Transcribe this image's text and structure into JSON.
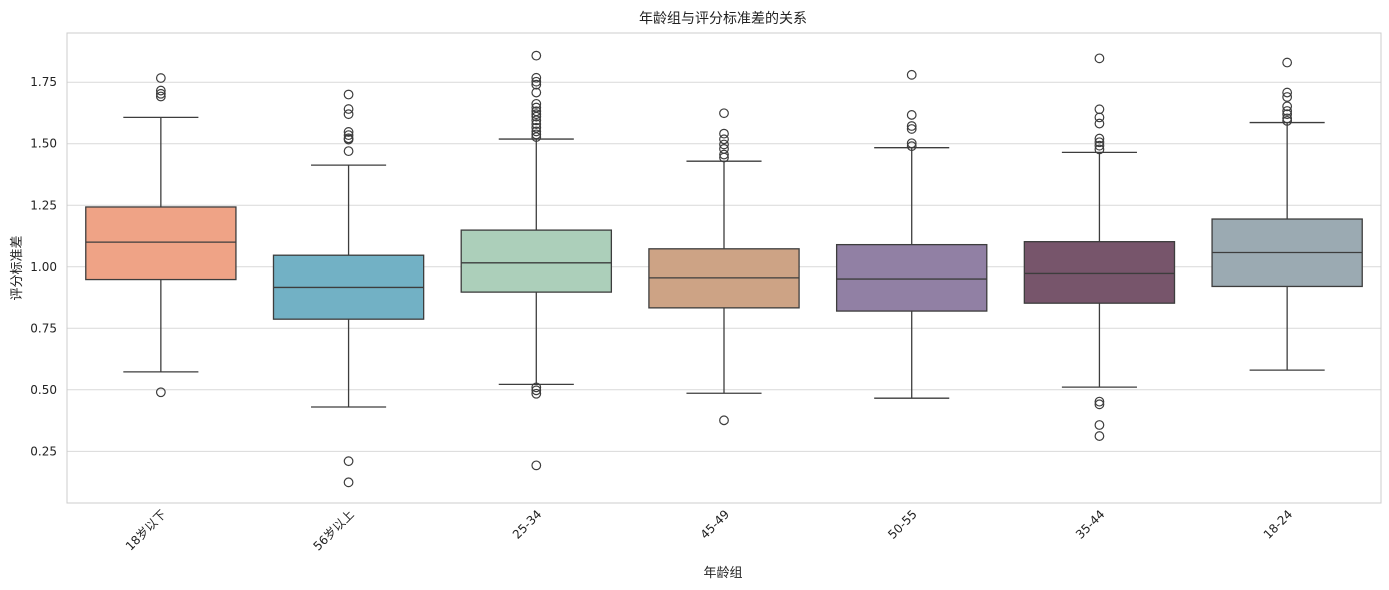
{
  "chart_data": {
    "type": "box",
    "title": "年龄组与评分标准差的关系",
    "xlabel": "年龄组",
    "ylabel": "评分标准差",
    "ylim": [
      0.04,
      1.95
    ],
    "yticks": [
      0.25,
      0.5,
      0.75,
      1.0,
      1.25,
      1.5,
      1.75
    ],
    "ytick_labels": [
      "0.25",
      "0.50",
      "0.75",
      "1.00",
      "1.25",
      "1.50",
      "1.75"
    ],
    "grid": true,
    "categories": [
      "18岁以下",
      "56岁以上",
      "25-34",
      "45-49",
      "50-55",
      "35-44",
      "18-24"
    ],
    "colors": [
      "#EFA386",
      "#72B1C5",
      "#ACCFBA",
      "#CDA385",
      "#9180A4",
      "#77556B",
      "#9BAAB2"
    ],
    "boxes": [
      {
        "q1": 0.948,
        "median": 1.1,
        "q3": 1.243,
        "whislo": 0.573,
        "whishi": 1.607,
        "fliers": [
          1.767,
          1.716,
          1.703,
          1.692,
          0.49
        ]
      },
      {
        "q1": 0.787,
        "median": 0.916,
        "q3": 1.047,
        "whislo": 0.43,
        "whishi": 1.413,
        "fliers": [
          1.7,
          1.641,
          1.62,
          1.548,
          1.535,
          1.522,
          1.517,
          1.47,
          0.21,
          0.124
        ]
      },
      {
        "q1": 0.897,
        "median": 1.016,
        "q3": 1.149,
        "whislo": 0.522,
        "whishi": 1.519,
        "fliers": [
          1.858,
          1.768,
          1.752,
          1.74,
          1.708,
          1.662,
          1.647,
          1.632,
          1.62,
          1.61,
          1.595,
          1.58,
          1.565,
          1.55,
          1.538,
          1.527,
          0.51,
          0.498,
          0.484,
          0.193
        ]
      },
      {
        "q1": 0.833,
        "median": 0.955,
        "q3": 1.073,
        "whislo": 0.486,
        "whishi": 1.429,
        "fliers": [
          1.624,
          1.541,
          1.518,
          1.497,
          1.479,
          1.456,
          1.444,
          0.376
        ]
      },
      {
        "q1": 0.82,
        "median": 0.95,
        "q3": 1.09,
        "whislo": 0.466,
        "whishi": 1.484,
        "fliers": [
          1.78,
          1.617,
          1.572,
          1.56,
          1.502,
          1.49
        ]
      },
      {
        "q1": 0.852,
        "median": 0.973,
        "q3": 1.102,
        "whislo": 0.511,
        "whishi": 1.465,
        "fliers": [
          1.847,
          1.64,
          1.607,
          1.582,
          1.521,
          1.506,
          1.492,
          1.477,
          0.452,
          0.441,
          0.357,
          0.312
        ]
      },
      {
        "q1": 0.92,
        "median": 1.058,
        "q3": 1.194,
        "whislo": 0.58,
        "whishi": 1.586,
        "fliers": [
          1.83,
          1.708,
          1.69,
          1.652,
          1.633,
          1.62,
          1.603,
          1.593
        ]
      }
    ]
  }
}
